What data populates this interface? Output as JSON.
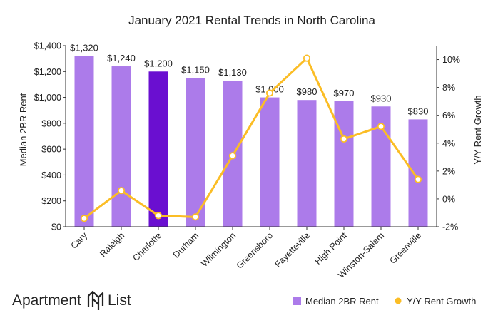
{
  "chart_data": {
    "type": "bar",
    "title": "January 2021 Rental Trends in North Carolina",
    "categories": [
      "Cary",
      "Raleigh",
      "Charlotte",
      "Durham",
      "Wilmington",
      "Greensboro",
      "Fayetteville",
      "High Point",
      "Winston-Salem",
      "Greenville"
    ],
    "series": [
      {
        "name": "Median 2BR Rent",
        "type": "bar",
        "axis": "left",
        "values": [
          1320,
          1240,
          1200,
          1150,
          1130,
          1000,
          980,
          970,
          930,
          830
        ],
        "data_labels": [
          "$1,320",
          "$1,240",
          "$1,200",
          "$1,150",
          "$1,130",
          "$1,000",
          "$980",
          "$970",
          "$930",
          "$830"
        ],
        "color": "#ac7bea",
        "highlight_color": "#6a0fd0",
        "highlight_index": 2
      },
      {
        "name": "Y/Y Rent Growth",
        "type": "line",
        "axis": "right",
        "values": [
          -1.4,
          0.6,
          -1.2,
          -1.3,
          3.1,
          7.6,
          10.1,
          4.3,
          5.2,
          1.4
        ],
        "color": "#fbbd25"
      }
    ],
    "ylabel": "Median 2BR Rent",
    "ylim": [
      0,
      1400
    ],
    "yticks": [
      0,
      200,
      400,
      600,
      800,
      1000,
      1200,
      1400
    ],
    "ytick_labels": [
      "$0",
      "$200",
      "$400",
      "$600",
      "$800",
      "$1,000",
      "$1,200",
      "$1,400"
    ],
    "y2label": "Y/Y Rent Growth",
    "y2lim": [
      -2,
      11
    ],
    "y2ticks": [
      -2,
      0,
      2,
      4,
      6,
      8,
      10
    ],
    "y2tick_labels": [
      "-2%",
      "0%",
      "2%",
      "4%",
      "6%",
      "8%",
      "10%"
    ],
    "grid": false,
    "legend_position": "bottom-right"
  },
  "legend": {
    "bar_label": "Median 2BR Rent",
    "line_label": "Y/Y Rent Growth"
  },
  "logo": {
    "word1": "Apartment",
    "word2": "List"
  }
}
